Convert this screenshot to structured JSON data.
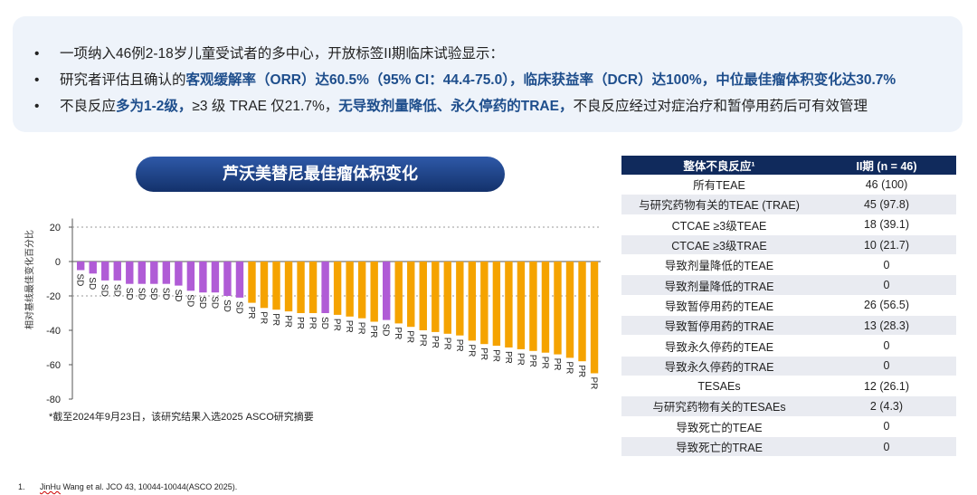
{
  "summary": {
    "bullet_symbol": "•",
    "line1": "一项纳入46例2-18岁儿童受试者的多中心，开放标签II期临床试验显示：",
    "line2_a": "研究者评估且确认的",
    "line2_b": "客观缓解率（ORR）达60.5%（95% CI：44.4-75.0），临床获益率（DCR）达100%，中位最佳瘤体积变化达30.7%",
    "line3_a": "不良反应",
    "line3_b": "多为1-2级，",
    "line3_c": "≥3 级 TRAE 仅21.7%，",
    "line3_d": "无导致剂量降低、永久停药的TRAE，",
    "line3_e": "不良反应经过对症治疗和暂停用药后可有效管理"
  },
  "chart_title": "芦沃美替尼最佳瘤体积变化",
  "chart_footnote": "*截至2024年9月23日，该研究结果入选2025 ASCO研究摘要",
  "reference": {
    "num": "1.",
    "author": "JinHu",
    "text": " Wang et al. JCO 43, 10044-10044(ASCO 2025)."
  },
  "colors": {
    "SD": "#b05cd6",
    "PR": "#f5a300",
    "accent": "#1e4e8c",
    "table_header": "#102a5c"
  },
  "chart_data": {
    "type": "bar",
    "title": "芦沃美替尼最佳瘤体积变化",
    "ylabel": "相对基线最佳变化百分比",
    "ylim": [
      -80,
      25
    ],
    "yticks": [
      20,
      0,
      -20,
      -40,
      -60,
      -80
    ],
    "reference_lines": [
      20,
      -20
    ],
    "bars": [
      {
        "value": -5,
        "response": "SD"
      },
      {
        "value": -7,
        "response": "SD"
      },
      {
        "value": -11,
        "response": "SD"
      },
      {
        "value": -11,
        "response": "SD"
      },
      {
        "value": -13,
        "response": "SD"
      },
      {
        "value": -13,
        "response": "SD"
      },
      {
        "value": -13,
        "response": "SD"
      },
      {
        "value": -13,
        "response": "SD"
      },
      {
        "value": -14,
        "response": "SD"
      },
      {
        "value": -17,
        "response": "SD"
      },
      {
        "value": -18,
        "response": "SD"
      },
      {
        "value": -18,
        "response": "SD"
      },
      {
        "value": -20,
        "response": "SD"
      },
      {
        "value": -21,
        "response": "SD"
      },
      {
        "value": -24,
        "response": "PR"
      },
      {
        "value": -27,
        "response": "PR"
      },
      {
        "value": -28,
        "response": "PR"
      },
      {
        "value": -29,
        "response": "PR"
      },
      {
        "value": -30,
        "response": "PR"
      },
      {
        "value": -30,
        "response": "PR"
      },
      {
        "value": -30,
        "response": "SD"
      },
      {
        "value": -31,
        "response": "PR"
      },
      {
        "value": -32,
        "response": "PR"
      },
      {
        "value": -33,
        "response": "PR"
      },
      {
        "value": -35,
        "response": "PR"
      },
      {
        "value": -34,
        "response": "SD"
      },
      {
        "value": -36,
        "response": "PR"
      },
      {
        "value": -38,
        "response": "PR"
      },
      {
        "value": -40,
        "response": "PR"
      },
      {
        "value": -41,
        "response": "PR"
      },
      {
        "value": -42,
        "response": "PR"
      },
      {
        "value": -43,
        "response": "PR"
      },
      {
        "value": -46,
        "response": "PR"
      },
      {
        "value": -48,
        "response": "PR"
      },
      {
        "value": -49,
        "response": "PR"
      },
      {
        "value": -50,
        "response": "PR"
      },
      {
        "value": -51,
        "response": "PR"
      },
      {
        "value": -52,
        "response": "PR"
      },
      {
        "value": -53,
        "response": "PR"
      },
      {
        "value": -54,
        "response": "PR"
      },
      {
        "value": -56,
        "response": "PR"
      },
      {
        "value": -58,
        "response": "PR"
      },
      {
        "value": -65,
        "response": "PR"
      }
    ]
  },
  "table": {
    "headers": [
      "整体不良反应¹",
      "II期 (n = 46)"
    ],
    "rows": [
      [
        "所有TEAE",
        "46 (100)"
      ],
      [
        "与研究药物有关的TEAE (TRAE)",
        "45 (97.8)"
      ],
      [
        "CTCAE ≥3级TEAE",
        "18 (39.1)"
      ],
      [
        "CTCAE ≥3级TRAE",
        "10 (21.7)"
      ],
      [
        "导致剂量降低的TEAE",
        "0"
      ],
      [
        "导致剂量降低的TRAE",
        "0"
      ],
      [
        "导致暂停用药的TEAE",
        "26 (56.5)"
      ],
      [
        "导致暂停用药的TRAE",
        "13 (28.3)"
      ],
      [
        "导致永久停药的TEAE",
        "0"
      ],
      [
        "导致永久停药的TRAE",
        "0"
      ],
      [
        "TESAEs",
        "12 (26.1)"
      ],
      [
        "与研究药物有关的TESAEs",
        "2 (4.3)"
      ],
      [
        "导致死亡的TEAE",
        "0"
      ],
      [
        "导致死亡的TRAE",
        "0"
      ]
    ]
  }
}
